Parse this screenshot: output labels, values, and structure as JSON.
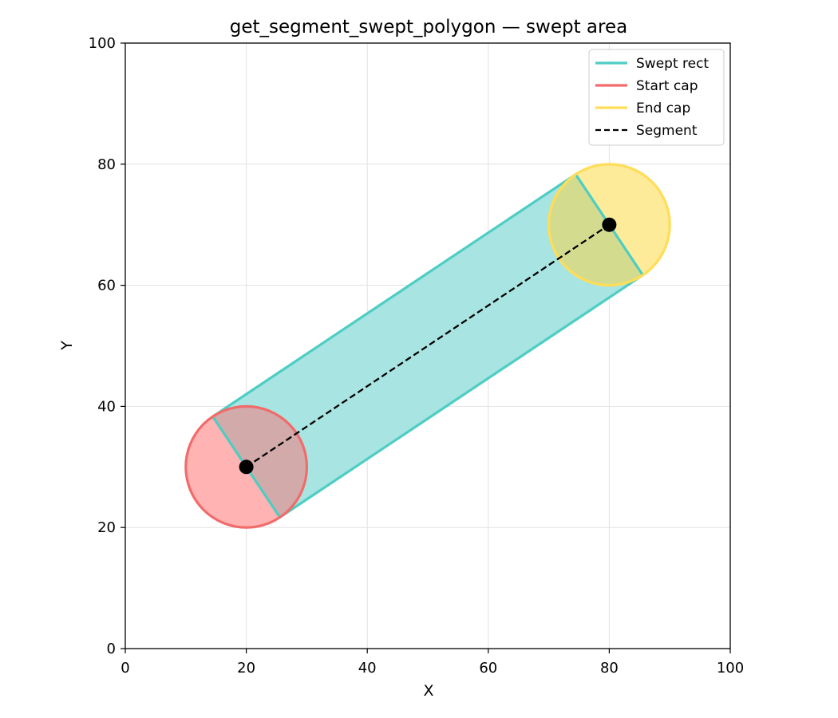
{
  "chart_data": {
    "type": "line",
    "title": "get_segment_swept_polygon — swept area",
    "xlabel": "X",
    "ylabel": "Y",
    "xlim": [
      0,
      100
    ],
    "ylim": [
      0,
      100
    ],
    "xticks": [
      "0",
      "20",
      "40",
      "60",
      "80",
      "100"
    ],
    "yticks": [
      "0",
      "20",
      "40",
      "60",
      "80",
      "100"
    ],
    "grid": true,
    "legend_position": "top-right",
    "segment": {
      "start": [
        20,
        30
      ],
      "end": [
        80,
        70
      ]
    },
    "radius": 10,
    "swept_rect": [
      [
        14.45,
        38.32
      ],
      [
        74.45,
        78.32
      ],
      [
        85.55,
        61.68
      ],
      [
        25.55,
        21.68
      ]
    ],
    "series": [
      {
        "name": "Swept rect",
        "color": "#4ecdc4",
        "style": "solid"
      },
      {
        "name": "Start cap",
        "color": "#f26b6b",
        "style": "solid"
      },
      {
        "name": "End cap",
        "color": "#ffdd57",
        "style": "solid"
      },
      {
        "name": "Segment",
        "color": "#000000",
        "style": "dashed"
      }
    ],
    "colors": {
      "rect_fill": "#a8e4e1",
      "start_fill": "#ffb3b3",
      "end_fill": "#feeb99",
      "overlap_start": "#d3aaaa",
      "overlap_end": "#d3dc8e"
    }
  }
}
